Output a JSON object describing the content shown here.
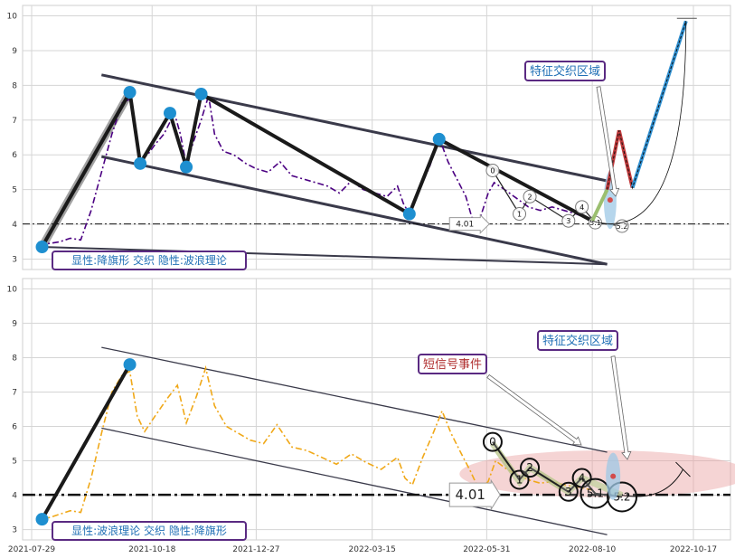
{
  "chart_data": [
    {
      "panel": "top",
      "type": "line",
      "ylim": [
        2.7,
        10.3
      ],
      "yticks": [
        "3",
        "4",
        "5",
        "6",
        "7",
        "8",
        "9",
        "10"
      ],
      "grid": true,
      "series_color": "#4b0082",
      "price": [
        [
          "2021-08-03",
          3.4
        ],
        [
          "2021-08-10",
          3.45
        ],
        [
          "2021-08-17",
          3.5
        ],
        [
          "2021-08-24",
          3.6
        ],
        [
          "2021-08-31",
          3.55
        ],
        [
          "2021-09-07",
          4.4
        ],
        [
          "2021-09-14",
          5.5
        ],
        [
          "2021-09-21",
          6.6
        ],
        [
          "2021-09-28",
          7.5
        ],
        [
          "2021-10-03",
          7.6
        ],
        [
          "2021-10-07",
          6.6
        ],
        [
          "2021-10-10",
          5.85
        ],
        [
          "2021-10-15",
          6.0
        ],
        [
          "2021-10-20",
          6.3
        ],
        [
          "2021-10-26",
          6.6
        ],
        [
          "2021-11-02",
          7.2
        ],
        [
          "2021-11-06",
          6.6
        ],
        [
          "2021-11-10",
          5.7
        ],
        [
          "2021-11-15",
          6.4
        ],
        [
          "2021-11-20",
          7.0
        ],
        [
          "2021-11-25",
          7.7
        ],
        [
          "2021-11-29",
          6.6
        ],
        [
          "2021-12-05",
          6.1
        ],
        [
          "2021-12-12",
          6.0
        ],
        [
          "2021-12-20",
          5.75
        ],
        [
          "2021-12-27",
          5.6
        ],
        [
          "2022-01-04",
          5.5
        ],
        [
          "2022-01-12",
          5.8
        ],
        [
          "2022-01-20",
          5.4
        ],
        [
          "2022-01-28",
          5.3
        ],
        [
          "2022-02-05",
          5.2
        ],
        [
          "2022-02-13",
          5.1
        ],
        [
          "2022-02-21",
          4.9
        ],
        [
          "2022-03-01",
          5.25
        ],
        [
          "2022-03-09",
          5.0
        ],
        [
          "2022-03-17",
          4.9
        ],
        [
          "2022-03-25",
          4.8
        ],
        [
          "2022-04-01",
          5.1
        ],
        [
          "2022-04-05",
          4.6
        ],
        [
          "2022-04-09",
          4.3
        ],
        [
          "2022-04-16",
          5.0
        ],
        [
          "2022-04-23",
          5.7
        ],
        [
          "2022-04-29",
          6.5
        ],
        [
          "2022-05-05",
          5.8
        ],
        [
          "2022-05-11",
          5.3
        ],
        [
          "2022-05-17",
          4.8
        ],
        [
          "2022-05-21",
          4.2
        ],
        [
          "2022-05-26",
          4.1
        ],
        [
          "2022-06-01",
          4.9
        ],
        [
          "2022-06-05",
          5.2
        ],
        [
          "2022-06-12",
          5.0
        ],
        [
          "2022-06-20",
          4.75
        ],
        [
          "2022-06-28",
          4.5
        ],
        [
          "2022-07-06",
          4.4
        ],
        [
          "2022-07-14",
          4.5
        ],
        [
          "2022-07-22",
          4.4
        ],
        [
          "2022-07-30",
          4.3
        ],
        [
          "2022-08-05",
          4.2
        ],
        [
          "2022-08-10",
          4.15
        ]
      ],
      "channel_upper": [
        [
          "2021-09-14",
          8.3
        ],
        [
          "2022-08-20",
          5.25
        ]
      ],
      "channel_lower": [
        [
          "2021-09-14",
          5.95
        ],
        [
          "2022-08-20",
          2.85
        ]
      ],
      "channel_lower2": [
        [
          "2021-08-04",
          3.35
        ],
        [
          "2022-08-20",
          2.85
        ]
      ],
      "horizontal_line": 4.01,
      "zigzag": [
        [
          "2021-08-05",
          3.35
        ],
        [
          "2021-10-03",
          7.8
        ],
        [
          "2021-10-10",
          5.75
        ],
        [
          "2021-10-30",
          7.2
        ],
        [
          "2021-11-10",
          5.65
        ],
        [
          "2021-11-20",
          7.75
        ],
        [
          "2022-04-09",
          4.3
        ],
        [
          "2022-04-29",
          6.45
        ],
        [
          "2022-08-10",
          4.1
        ]
      ],
      "pivots": [
        {
          "x": "2021-08-05",
          "y": 3.35
        },
        {
          "x": "2021-10-03",
          "y": 7.8
        },
        {
          "x": "2021-10-10",
          "y": 5.75
        },
        {
          "x": "2021-10-30",
          "y": 7.2
        },
        {
          "x": "2021-11-10",
          "y": 5.65
        },
        {
          "x": "2021-11-20",
          "y": 7.75
        },
        {
          "x": "2022-04-09",
          "y": 4.3
        },
        {
          "x": "2022-04-29",
          "y": 6.45
        }
      ],
      "wave_labels": [
        {
          "label": "0",
          "x": "2022-06-04",
          "y": 5.55
        },
        {
          "label": "1",
          "x": "2022-06-22",
          "y": 4.3
        },
        {
          "label": "2",
          "x": "2022-06-29",
          "y": 4.8
        },
        {
          "label": "3",
          "x": "2022-07-25",
          "y": 4.1
        },
        {
          "label": "4",
          "x": "2022-08-03",
          "y": 4.5
        },
        {
          "label": "5.1",
          "x": "2022-08-12",
          "y": 4.05
        },
        {
          "label": "5.2",
          "x": "2022-08-30",
          "y": 3.95
        }
      ],
      "level_label": "4.01",
      "projection": [
        [
          "2022-08-10",
          4.1
        ],
        [
          "2022-08-20",
          5.0
        ],
        [
          "2022-08-28",
          6.7
        ],
        [
          "2022-09-06",
          5.05
        ],
        [
          "2022-10-12",
          9.85
        ]
      ],
      "feature_box": "特征交织区域",
      "pattern_label": "显性:降旗形 交织 隐性:波浪理论"
    },
    {
      "panel": "bottom",
      "type": "line",
      "ylim": [
        2.7,
        10.3
      ],
      "yticks": [
        "3",
        "4",
        "5",
        "6",
        "7",
        "8",
        "9",
        "10"
      ],
      "grid": true,
      "series_color": "#f0a818",
      "price": [
        [
          "2021-08-03",
          3.35
        ],
        [
          "2021-08-10",
          3.35
        ],
        [
          "2021-08-17",
          3.45
        ],
        [
          "2021-08-24",
          3.55
        ],
        [
          "2021-08-31",
          3.5
        ],
        [
          "2021-09-07",
          4.5
        ],
        [
          "2021-09-14",
          5.8
        ],
        [
          "2021-09-21",
          7.0
        ],
        [
          "2021-09-28",
          7.5
        ],
        [
          "2021-10-03",
          7.6
        ],
        [
          "2021-10-08",
          6.3
        ],
        [
          "2021-10-13",
          5.85
        ],
        [
          "2021-10-20",
          6.3
        ],
        [
          "2021-10-28",
          6.8
        ],
        [
          "2021-11-04",
          7.2
        ],
        [
          "2021-11-10",
          6.1
        ],
        [
          "2021-11-17",
          6.9
        ],
        [
          "2021-11-23",
          7.7
        ],
        [
          "2021-11-29",
          6.6
        ],
        [
          "2021-12-07",
          6.0
        ],
        [
          "2021-12-15",
          5.8
        ],
        [
          "2021-12-23",
          5.6
        ],
        [
          "2022-01-01",
          5.5
        ],
        [
          "2022-01-10",
          6.05
        ],
        [
          "2022-01-20",
          5.4
        ],
        [
          "2022-01-30",
          5.3
        ],
        [
          "2022-02-09",
          5.1
        ],
        [
          "2022-02-19",
          4.9
        ],
        [
          "2022-03-01",
          5.2
        ],
        [
          "2022-03-11",
          4.95
        ],
        [
          "2022-03-21",
          4.75
        ],
        [
          "2022-04-01",
          5.1
        ],
        [
          "2022-04-06",
          4.5
        ],
        [
          "2022-04-11",
          4.3
        ],
        [
          "2022-04-18",
          5.1
        ],
        [
          "2022-04-25",
          5.8
        ],
        [
          "2022-05-01",
          6.45
        ],
        [
          "2022-05-07",
          5.8
        ],
        [
          "2022-05-14",
          5.2
        ],
        [
          "2022-05-20",
          4.7
        ],
        [
          "2022-05-26",
          4.15
        ],
        [
          "2022-06-01",
          4.4
        ],
        [
          "2022-06-06",
          5.0
        ],
        [
          "2022-06-12",
          4.8
        ],
        [
          "2022-06-20",
          4.6
        ],
        [
          "2022-06-28",
          4.45
        ],
        [
          "2022-07-06",
          4.35
        ],
        [
          "2022-07-14",
          4.4
        ],
        [
          "2022-07-22",
          4.3
        ],
        [
          "2022-07-30",
          4.25
        ],
        [
          "2022-08-05",
          4.2
        ],
        [
          "2022-08-10",
          4.15
        ]
      ],
      "channel_upper": [
        [
          "2021-09-14",
          8.3
        ],
        [
          "2022-08-20",
          5.25
        ]
      ],
      "channel_lower": [
        [
          "2021-09-14",
          5.95
        ],
        [
          "2022-08-20",
          2.85
        ]
      ],
      "horizontal_line": 4.01,
      "zigzag": [
        [
          "2021-08-05",
          3.3
        ],
        [
          "2021-10-03",
          7.8
        ]
      ],
      "pivots": [
        {
          "x": "2021-08-05",
          "y": 3.3
        },
        {
          "x": "2021-10-03",
          "y": 7.8
        }
      ],
      "wave_labels": [
        {
          "label": "0",
          "x": "2022-06-04",
          "y": 5.55
        },
        {
          "label": "1",
          "x": "2022-06-22",
          "y": 4.45
        },
        {
          "label": "2",
          "x": "2022-06-29",
          "y": 4.8
        },
        {
          "label": "3",
          "x": "2022-07-25",
          "y": 4.1
        },
        {
          "label": "4",
          "x": "2022-08-03",
          "y": 4.5
        },
        {
          "label": "5.1",
          "x": "2022-08-12",
          "y": 4.05
        },
        {
          "label": "5.2",
          "x": "2022-08-30",
          "y": 3.95
        }
      ],
      "level_label": "4.01",
      "wave_band": [
        [
          "2022-06-04",
          5.5
        ],
        [
          "2022-06-22",
          4.4
        ],
        [
          "2022-06-29",
          4.8
        ],
        [
          "2022-07-25",
          4.1
        ],
        [
          "2022-08-03",
          4.5
        ],
        [
          "2022-08-30",
          4.0
        ]
      ],
      "short_signal_box": "短信号事件",
      "feature_box": "特征交织区域",
      "pattern_label": "显性:波浪理论 交织 隐性:降旗形",
      "xticks": [
        "2021-07-29",
        "2021-10-18",
        "2021-12-27",
        "2022-03-15",
        "2022-05-31",
        "2022-08-10",
        "2022-10-17"
      ]
    }
  ],
  "colors": {
    "label_border": "#5a2a82",
    "label_text": "#1f6fb5",
    "signal_text": "#b03030",
    "zigzag": "#1a1a1a",
    "channel": "#3a3a4a",
    "pivot": "#1e8fd0",
    "band_red": "#e8a0a0",
    "band_blue": "#9ec8e6",
    "projection_red": "#c0393b",
    "projection_blue": "#2f8fd0",
    "projection_green": "#9bbf70"
  }
}
